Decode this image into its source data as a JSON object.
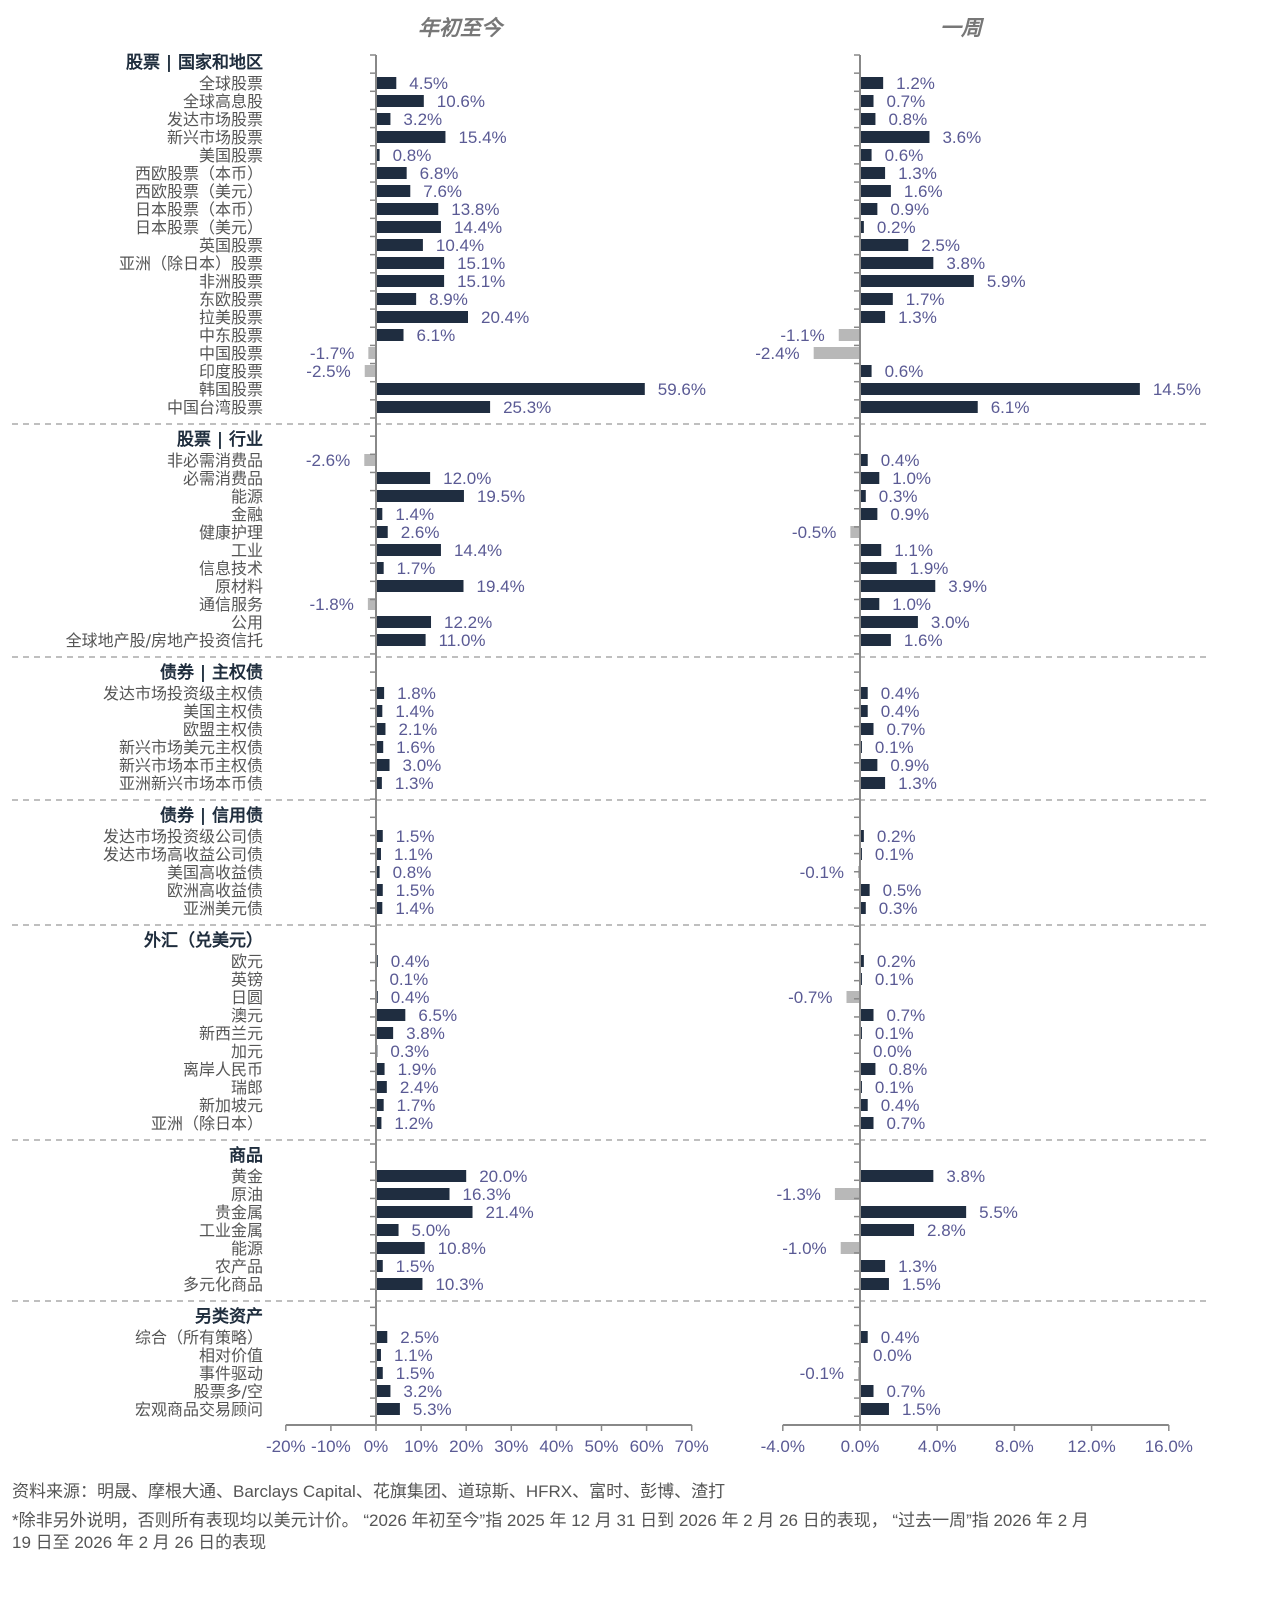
{
  "colors": {
    "positive_bar": "#1f2d40",
    "negative_bar": "#b8b8b8",
    "value_text": "#5a5a94",
    "label_text": "#555555",
    "header_text": "#1f2d3d",
    "axis": "#888888"
  },
  "chart_data": {
    "type": "bar",
    "orientation": "horizontal",
    "panels": [
      {
        "key": "ytd",
        "title": "年初至今",
        "xlim": [
          -20,
          70
        ],
        "ticks": [
          -20,
          -10,
          0,
          10,
          20,
          30,
          40,
          50,
          60,
          70
        ],
        "tick_labels": [
          "-20%",
          "-10%",
          "0%",
          "10%",
          "20%",
          "30%",
          "40%",
          "50%",
          "60%",
          "70%"
        ]
      },
      {
        "key": "week",
        "title": "一周",
        "xlim": [
          -4,
          16
        ],
        "ticks": [
          -4,
          0,
          4,
          8,
          12,
          16
        ],
        "tick_labels": [
          "-4.0%",
          "0.0%",
          "4.0%",
          "8.0%",
          "12.0%",
          "16.0%"
        ]
      }
    ],
    "unit": "%",
    "sections": [
      {
        "title": "股票 | 国家和地区",
        "rows": [
          {
            "label": "全球股票",
            "ytd": 4.5,
            "week": 1.2
          },
          {
            "label": "全球高息股",
            "ytd": 10.6,
            "week": 0.7
          },
          {
            "label": "发达市场股票",
            "ytd": 3.2,
            "week": 0.8
          },
          {
            "label": "新兴市场股票",
            "ytd": 15.4,
            "week": 3.6
          },
          {
            "label": "美国股票",
            "ytd": 0.8,
            "week": 0.6
          },
          {
            "label": "西欧股票（本币）",
            "ytd": 6.8,
            "week": 1.3
          },
          {
            "label": "西欧股票（美元）",
            "ytd": 7.6,
            "week": 1.6
          },
          {
            "label": "日本股票（本币）",
            "ytd": 13.8,
            "week": 0.9
          },
          {
            "label": "日本股票（美元）",
            "ytd": 14.4,
            "week": 0.2
          },
          {
            "label": "英国股票",
            "ytd": 10.4,
            "week": 2.5
          },
          {
            "label": "亚洲（除日本）股票",
            "ytd": 15.1,
            "week": 3.8
          },
          {
            "label": "非洲股票",
            "ytd": 15.1,
            "week": 5.9
          },
          {
            "label": "东欧股票",
            "ytd": 8.9,
            "week": 1.7
          },
          {
            "label": "拉美股票",
            "ytd": 20.4,
            "week": 1.3
          },
          {
            "label": "中东股票",
            "ytd": 6.1,
            "week": -1.1
          },
          {
            "label": "中国股票",
            "ytd": -1.7,
            "week": -2.4
          },
          {
            "label": "印度股票",
            "ytd": -2.5,
            "week": 0.6
          },
          {
            "label": "韩国股票",
            "ytd": 59.6,
            "week": 14.5
          },
          {
            "label": "中国台湾股票",
            "ytd": 25.3,
            "week": 6.1
          }
        ]
      },
      {
        "title": "股票 | 行业",
        "rows": [
          {
            "label": "非必需消费品",
            "ytd": -2.6,
            "week": 0.4
          },
          {
            "label": "必需消费品",
            "ytd": 12.0,
            "week": 1.0
          },
          {
            "label": "能源",
            "ytd": 19.5,
            "week": 0.3
          },
          {
            "label": "金融",
            "ytd": 1.4,
            "week": 0.9
          },
          {
            "label": "健康护理",
            "ytd": 2.6,
            "week": -0.5
          },
          {
            "label": "工业",
            "ytd": 14.4,
            "week": 1.1
          },
          {
            "label": "信息技术",
            "ytd": 1.7,
            "week": 1.9
          },
          {
            "label": "原材料",
            "ytd": 19.4,
            "week": 3.9
          },
          {
            "label": "通信服务",
            "ytd": -1.8,
            "week": 1.0
          },
          {
            "label": "公用",
            "ytd": 12.2,
            "week": 3.0
          },
          {
            "label": "全球地产股/房地产投资信托",
            "ytd": 11.0,
            "week": 1.6
          }
        ]
      },
      {
        "title": "债券 | 主权债",
        "rows": [
          {
            "label": "发达市场投资级主权债",
            "ytd": 1.8,
            "week": 0.4
          },
          {
            "label": "美国主权债",
            "ytd": 1.4,
            "week": 0.4
          },
          {
            "label": "欧盟主权债",
            "ytd": 2.1,
            "week": 0.7
          },
          {
            "label": "新兴市场美元主权债",
            "ytd": 1.6,
            "week": 0.1
          },
          {
            "label": "新兴市场本币主权债",
            "ytd": 3.0,
            "week": 0.9
          },
          {
            "label": "亚洲新兴市场本币债",
            "ytd": 1.3,
            "week": 1.3
          }
        ]
      },
      {
        "title": "债券 | 信用债",
        "rows": [
          {
            "label": "发达市场投资级公司债",
            "ytd": 1.5,
            "week": 0.2
          },
          {
            "label": "发达市场高收益公司债",
            "ytd": 1.1,
            "week": 0.1
          },
          {
            "label": "美国高收益债",
            "ytd": 0.8,
            "week": -0.1
          },
          {
            "label": "欧洲高收益债",
            "ytd": 1.5,
            "week": 0.5
          },
          {
            "label": "亚洲美元债",
            "ytd": 1.4,
            "week": 0.3
          }
        ]
      },
      {
        "title": "外汇（兑美元）",
        "rows": [
          {
            "label": "欧元",
            "ytd": 0.4,
            "week": 0.2
          },
          {
            "label": "英镑",
            "ytd": 0.1,
            "week": 0.1
          },
          {
            "label": "日圆",
            "ytd": 0.4,
            "week": -0.7
          },
          {
            "label": "澳元",
            "ytd": 6.5,
            "week": 0.7
          },
          {
            "label": "新西兰元",
            "ytd": 3.8,
            "week": 0.1
          },
          {
            "label": "加元",
            "ytd": 0.3,
            "week": 0.0
          },
          {
            "label": "离岸人民币",
            "ytd": 1.9,
            "week": 0.8
          },
          {
            "label": "瑞郎",
            "ytd": 2.4,
            "week": 0.1
          },
          {
            "label": "新加坡元",
            "ytd": 1.7,
            "week": 0.4
          },
          {
            "label": "亚洲（除日本）",
            "ytd": 1.2,
            "week": 0.7
          }
        ]
      },
      {
        "title": "商品",
        "rows": [
          {
            "label": "黄金",
            "ytd": 20.0,
            "week": 3.8
          },
          {
            "label": "原油",
            "ytd": 16.3,
            "week": -1.3
          },
          {
            "label": "贵金属",
            "ytd": 21.4,
            "week": 5.5
          },
          {
            "label": "工业金属",
            "ytd": 5.0,
            "week": 2.8
          },
          {
            "label": "能源",
            "ytd": 10.8,
            "week": -1.0
          },
          {
            "label": "农产品",
            "ytd": 1.5,
            "week": 1.3
          },
          {
            "label": "多元化商品",
            "ytd": 10.3,
            "week": 1.5
          }
        ]
      },
      {
        "title": "另类资产",
        "rows": [
          {
            "label": "综合（所有策略）",
            "ytd": 2.5,
            "week": 0.4
          },
          {
            "label": "相对价值",
            "ytd": 1.1,
            "week": 0.0
          },
          {
            "label": "事件驱动",
            "ytd": 1.5,
            "week": -0.1
          },
          {
            "label": "股票多/空",
            "ytd": 3.2,
            "week": 0.7
          },
          {
            "label": "宏观商品交易顾问",
            "ytd": 5.3,
            "week": 1.5
          }
        ]
      }
    ]
  },
  "footer": {
    "source": "资料来源：明晟、摩根大通、Barclays Capital、花旗集团、道琼斯、HFRX、富时、彭博、渣打",
    "note_line1": "*除非另外说明，否则所有表现均以美元计价。 “2026 年初至今”指 2025 年 12 月 31 日到 2026 年 2 月 26 日的表现， “过去一周”指 2026 年 2 月",
    "note_line2": "19 日至 2026 年 2 月 26 日的表现"
  }
}
